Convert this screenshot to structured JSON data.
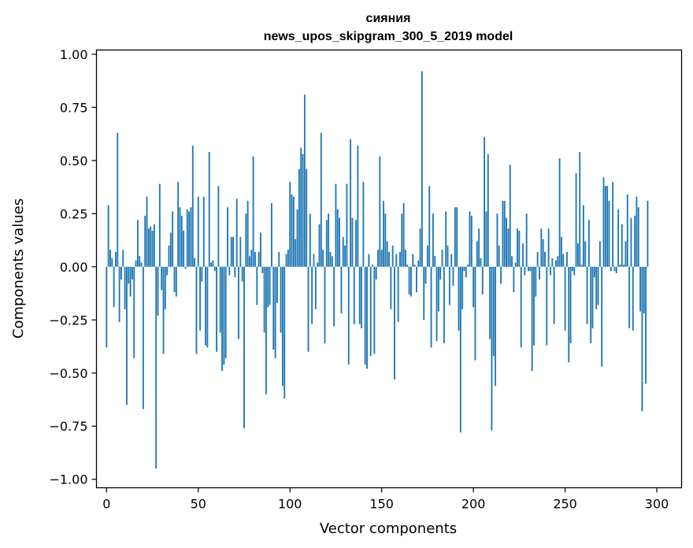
{
  "chart_data": {
    "type": "bar",
    "title_line1": "сияния",
    "title_line2": "news_upos_skipgram_300_5_2019 model",
    "xlabel": "Vector components",
    "ylabel": "Components values",
    "xlim": [
      -5.5,
      313.5
    ],
    "ylim": [
      -1.04,
      1.02
    ],
    "xticks": [
      0,
      50,
      100,
      150,
      200,
      250,
      300
    ],
    "xtick_labels": [
      "0",
      "50",
      "100",
      "150",
      "200",
      "250",
      "300"
    ],
    "yticks": [
      1.0,
      0.75,
      0.5,
      0.25,
      0.0,
      -0.25,
      -0.5,
      -0.75,
      -1.0
    ],
    "ytick_labels": [
      "1.00",
      "0.75",
      "0.50",
      "0.25",
      "0.00",
      "−0.25",
      "−0.50",
      "−0.75",
      "−1.00"
    ],
    "bar_color": "#1f77b4",
    "series": [
      {
        "name": "сияния",
        "values": [
          -0.38,
          0.29,
          0.08,
          0.04,
          -0.19,
          0.07,
          0.63,
          -0.26,
          -0.06,
          0.08,
          -0.2,
          -0.65,
          -0.08,
          -0.14,
          -0.06,
          -0.43,
          0.03,
          0.22,
          0.05,
          0.02,
          -0.67,
          0.24,
          0.33,
          0.18,
          0.19,
          0.17,
          0.2,
          -0.95,
          -0.23,
          0.39,
          -0.11,
          -0.41,
          -0.2,
          -0.04,
          0.1,
          0.16,
          0.26,
          -0.12,
          -0.14,
          0.4,
          0.28,
          0.24,
          0.17,
          -0.01,
          0.27,
          0.26,
          0.28,
          0.57,
          0.04,
          -0.41,
          0.33,
          -0.3,
          -0.07,
          0.33,
          -0.37,
          -0.38,
          0.54,
          0.02,
          0.03,
          -0.02,
          -0.4,
          0.38,
          -0.31,
          -0.49,
          -0.46,
          -0.43,
          0.28,
          -0.04,
          0.14,
          0.14,
          -0.05,
          0.32,
          -0.34,
          0.14,
          -0.07,
          -0.76,
          0.25,
          0.31,
          0.05,
          0.08,
          0.52,
          0.07,
          -0.18,
          0.07,
          0.16,
          -0.03,
          -0.31,
          -0.6,
          -0.19,
          -0.18,
          0.3,
          -0.39,
          -0.43,
          -0.17,
          0.07,
          -0.31,
          -0.56,
          -0.62,
          0.06,
          0.08,
          0.4,
          0.34,
          0.33,
          0.13,
          0.27,
          0.46,
          0.56,
          0.53,
          0.81,
          0.46,
          -0.4,
          0.25,
          -0.27,
          0.06,
          -0.2,
          0.02,
          0.2,
          0.63,
          0.08,
          -0.36,
          0.22,
          0.25,
          0.07,
          0.05,
          -0.28,
          0.39,
          0.27,
          0.23,
          -0.22,
          0.14,
          0.1,
          0.39,
          -0.46,
          0.6,
          0.23,
          -0.27,
          0.22,
          0.57,
          -0.27,
          -0.29,
          0.4,
          -0.46,
          -0.48,
          0.06,
          -0.42,
          0.01,
          -0.41,
          -0.06,
          0.08,
          0.52,
          0.08,
          0.31,
          0.25,
          0.12,
          0.07,
          -0.2,
          0.1,
          -0.53,
          0.06,
          -0.26,
          0.07,
          0.25,
          0.3,
          0.08,
          0.01,
          -0.13,
          -0.14,
          0.06,
          0.01,
          -0.12,
          0.03,
          0.18,
          0.92,
          -0.25,
          -0.08,
          0.1,
          0.38,
          -0.38,
          0.25,
          0.05,
          -0.35,
          -0.21,
          -0.06,
          0.08,
          -0.36,
          0.26,
          0.1,
          -0.18,
          0.06,
          -0.09,
          0.28,
          0.28,
          -0.3,
          -0.78,
          -0.2,
          -0.02,
          -0.05,
          0.01,
          0.26,
          0.24,
          -0.19,
          -0.44,
          0.12,
          0.18,
          0.04,
          -0.13,
          0.61,
          0.26,
          0.53,
          -0.34,
          -0.77,
          -0.42,
          -0.56,
          0.25,
          0.1,
          -0.08,
          0.31,
          0.31,
          0.23,
          0.18,
          0.48,
          0.05,
          -0.12,
          0.02,
          0.18,
          0.17,
          -0.38,
          0.11,
          -0.04,
          0.25,
          -0.02,
          -0.02,
          -0.49,
          -0.37,
          -0.14,
          0.07,
          -0.06,
          0.18,
          0.13,
          0.07,
          -0.37,
          0.18,
          -0.04,
          0.04,
          -0.27,
          0.03,
          0.05,
          0.51,
          0.14,
          0.06,
          -0.3,
          0.07,
          -0.45,
          -0.36,
          -0.02,
          -0.04,
          0.44,
          0.11,
          0.54,
          0.01,
          0.29,
          0.12,
          -0.27,
          0.22,
          -0.36,
          -0.29,
          -0.05,
          -0.2,
          -0.18,
          0.12,
          -0.47,
          0.42,
          0.38,
          0.38,
          0.31,
          -0.02,
          0.4,
          -0.02,
          -0.03,
          0.27,
          0.01,
          0.2,
          0.01,
          0.12,
          0.34,
          -0.29,
          0.23,
          -0.3,
          0.24,
          0.33,
          0.28,
          -0.21,
          -0.68,
          -0.22,
          -0.55,
          0.31
        ]
      }
    ]
  }
}
